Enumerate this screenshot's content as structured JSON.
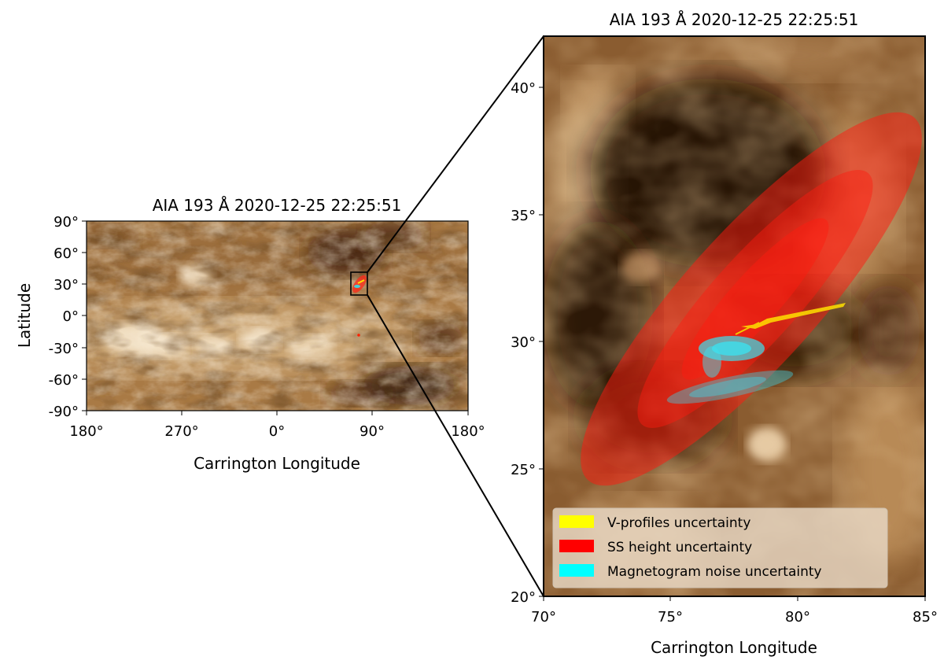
{
  "left_panel": {
    "title": "AIA 193 Å 2020-12-25 22:25:51",
    "xlabel": "Carrington Longitude",
    "ylabel": "Latitude",
    "xticks": [
      "180°",
      "270°",
      "0°",
      "90°",
      "180°"
    ],
    "yticks": [
      "90°",
      "60°",
      "30°",
      "0°",
      "-30°",
      "-60°",
      "-90°"
    ]
  },
  "right_panel": {
    "title": "AIA 193 Å 2020-12-25 22:25:51",
    "xlabel": "Carrington Longitude",
    "xticks": [
      "70°",
      "75°",
      "80°",
      "85°"
    ],
    "yticks": [
      "40°",
      "35°",
      "30°",
      "25°",
      "20°"
    ],
    "xlim": [
      70,
      85
    ],
    "ylim": [
      20,
      42
    ]
  },
  "legend": {
    "items": [
      {
        "label": "V-profiles uncertainty",
        "color": "#ffff00"
      },
      {
        "label": "SS height uncertainty",
        "color": "#ff0000"
      },
      {
        "label": "Magnetogram noise uncertainty",
        "color": "#00ffff"
      }
    ]
  },
  "colors": {
    "map_base": "#a97a45",
    "map_dark": "#2b1508",
    "map_bright": "#f3dcb8",
    "red": "#ff0000",
    "cyan": "#00e5ee",
    "yellow": "#ffe000"
  }
}
